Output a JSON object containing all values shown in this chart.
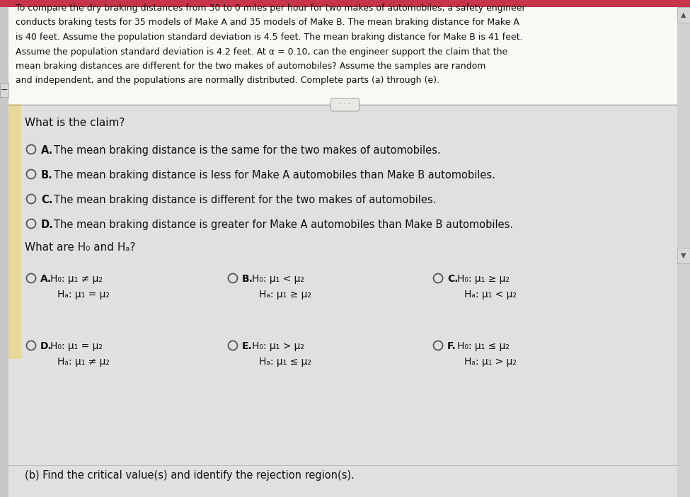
{
  "bg_color": "#c8c8c8",
  "header_bg": "#f5f5f5",
  "content_bg": "#e8e8e8",
  "yellow_accent": "#e8d898",
  "header_text_lines": [
    "To compare the dry braking distances from 30 to 0 miles per hour for two makes of automobiles, a safety engineer",
    "conducts braking tests for 35 models of Make A and 35 models of Make B. The mean braking distance for Make A",
    "is 40 feet. Assume the population standard deviation is 4.5 feet. The mean braking distance for Make B is 41 feet.",
    "Assume the population standard deviation is 4.2 feet. At α = 0.10, can the engineer support the claim that the",
    "mean braking distances are different for the two makes of automobiles? Assume the samples are random",
    "and independent, and the populations are normally distributed. Complete parts (a) through (e)."
  ],
  "claim_question": "What is the claim?",
  "claim_options": [
    {
      "key": "A",
      "text": "The mean braking distance is the same for the two makes of automobiles."
    },
    {
      "key": "B",
      "text": "The mean braking distance is less for Make A automobiles than Make B automobiles."
    },
    {
      "key": "C",
      "text": "The mean braking distance is different for the two makes of automobiles."
    },
    {
      "key": "D",
      "text": "The mean braking distance is greater for Make A automobiles than Make B automobiles."
    }
  ],
  "h_question": "What are H₀ and Hₐ?",
  "h_options": [
    {
      "key": "A",
      "h0": "H₀: μ₁ ≠ μ₂",
      "ha": "Hₐ: μ₁ = μ₂"
    },
    {
      "key": "B",
      "h0": "H₀: μ₁ < μ₂",
      "ha": "Hₐ: μ₁ ≥ μ₂"
    },
    {
      "key": "C",
      "h0": "H₀: μ₁ ≥ μ₂",
      "ha": "Hₐ: μ₁ < μ₂"
    },
    {
      "key": "D",
      "h0": "H₀: μ₁ = μ₂",
      "ha": "Hₐ: μ₁ ≠ μ₂"
    },
    {
      "key": "E",
      "h0": "H₀: μ₁ > μ₂",
      "ha": "Hₐ: μ₁ ≤ μ₂"
    },
    {
      "key": "F",
      "h0": "H₀: μ₁ ≤ μ₂",
      "ha": "Hₐ: μ₁ > μ₂"
    }
  ],
  "part_b": "(b) Find the critical value(s) and identify the rejection region(s).",
  "separator_dots": "· · ·"
}
